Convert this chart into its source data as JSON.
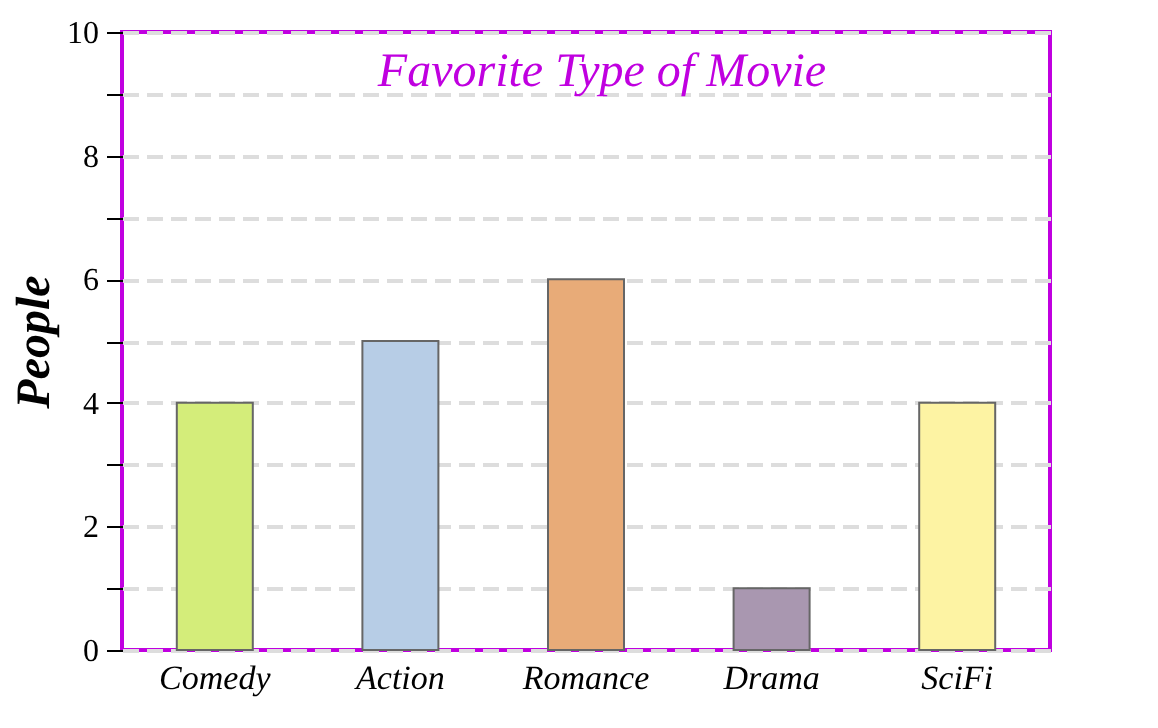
{
  "chart_data": {
    "type": "bar",
    "title": "Favorite Type of Movie",
    "ylabel": "People",
    "categories": [
      "Comedy",
      "Action",
      "Romance",
      "Drama",
      "SciFi"
    ],
    "values": [
      4,
      5,
      6,
      1,
      4
    ],
    "colors": [
      "#d4ed7a",
      "#b7cde6",
      "#e8ab78",
      "#a997b0",
      "#fdf3a3"
    ],
    "ylim": [
      0,
      10
    ],
    "yticks": [
      0,
      {
        "value": 1,
        "label": null
      },
      2,
      {
        "value": 3,
        "label": null
      },
      4,
      {
        "value": 5,
        "label": null
      },
      6,
      {
        "value": 7,
        "label": null
      },
      8,
      {
        "value": 9,
        "label": null
      },
      10
    ],
    "grid": "y"
  }
}
